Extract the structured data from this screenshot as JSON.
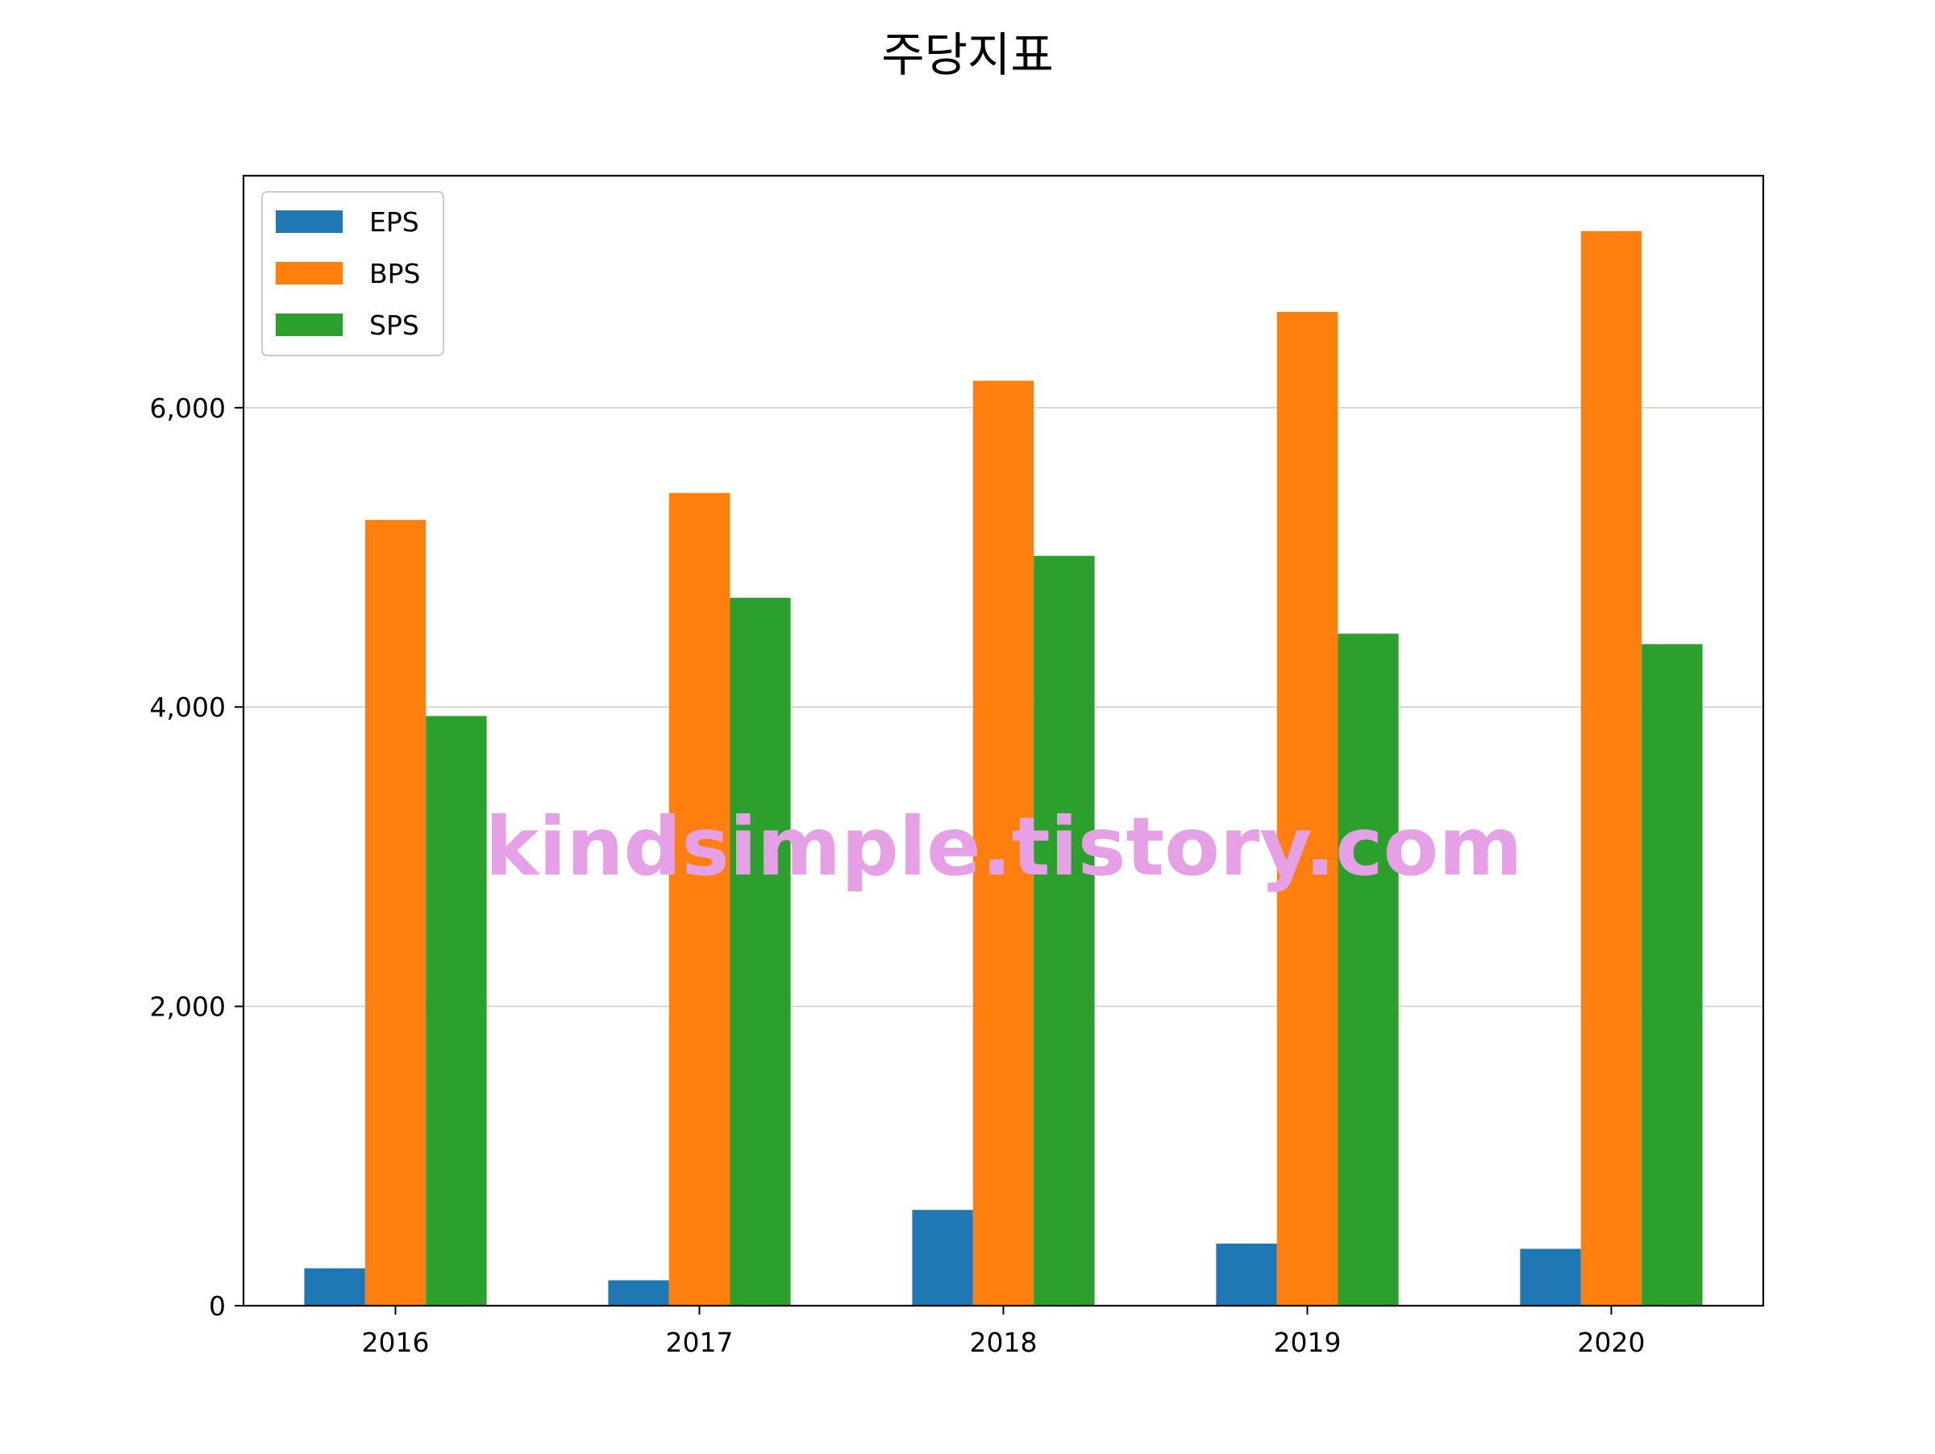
{
  "chart_data": {
    "type": "bar",
    "title": "주당지표",
    "xlabel": "",
    "ylabel": "",
    "categories": [
      "2016",
      "2017",
      "2018",
      "2019",
      "2020"
    ],
    "series": [
      {
        "name": "EPS",
        "color": "#1f77b4",
        "values": [
          250,
          170,
          640,
          415,
          380
        ]
      },
      {
        "name": "BPS",
        "color": "#ff7f0e",
        "values": [
          5250,
          5430,
          6180,
          6640,
          7180
        ]
      },
      {
        "name": "SPS",
        "color": "#2ca02c",
        "values": [
          3940,
          4730,
          5010,
          4490,
          4420
        ]
      }
    ],
    "ylim": [
      0,
      7550
    ],
    "yticks": [
      0,
      2000,
      4000,
      6000
    ],
    "ytick_labels": [
      "0",
      "2,000",
      "4,000",
      "6,000"
    ],
    "grid": "horizontal",
    "legend": "top-left",
    "watermark": "kindsimple.tistory.com"
  }
}
